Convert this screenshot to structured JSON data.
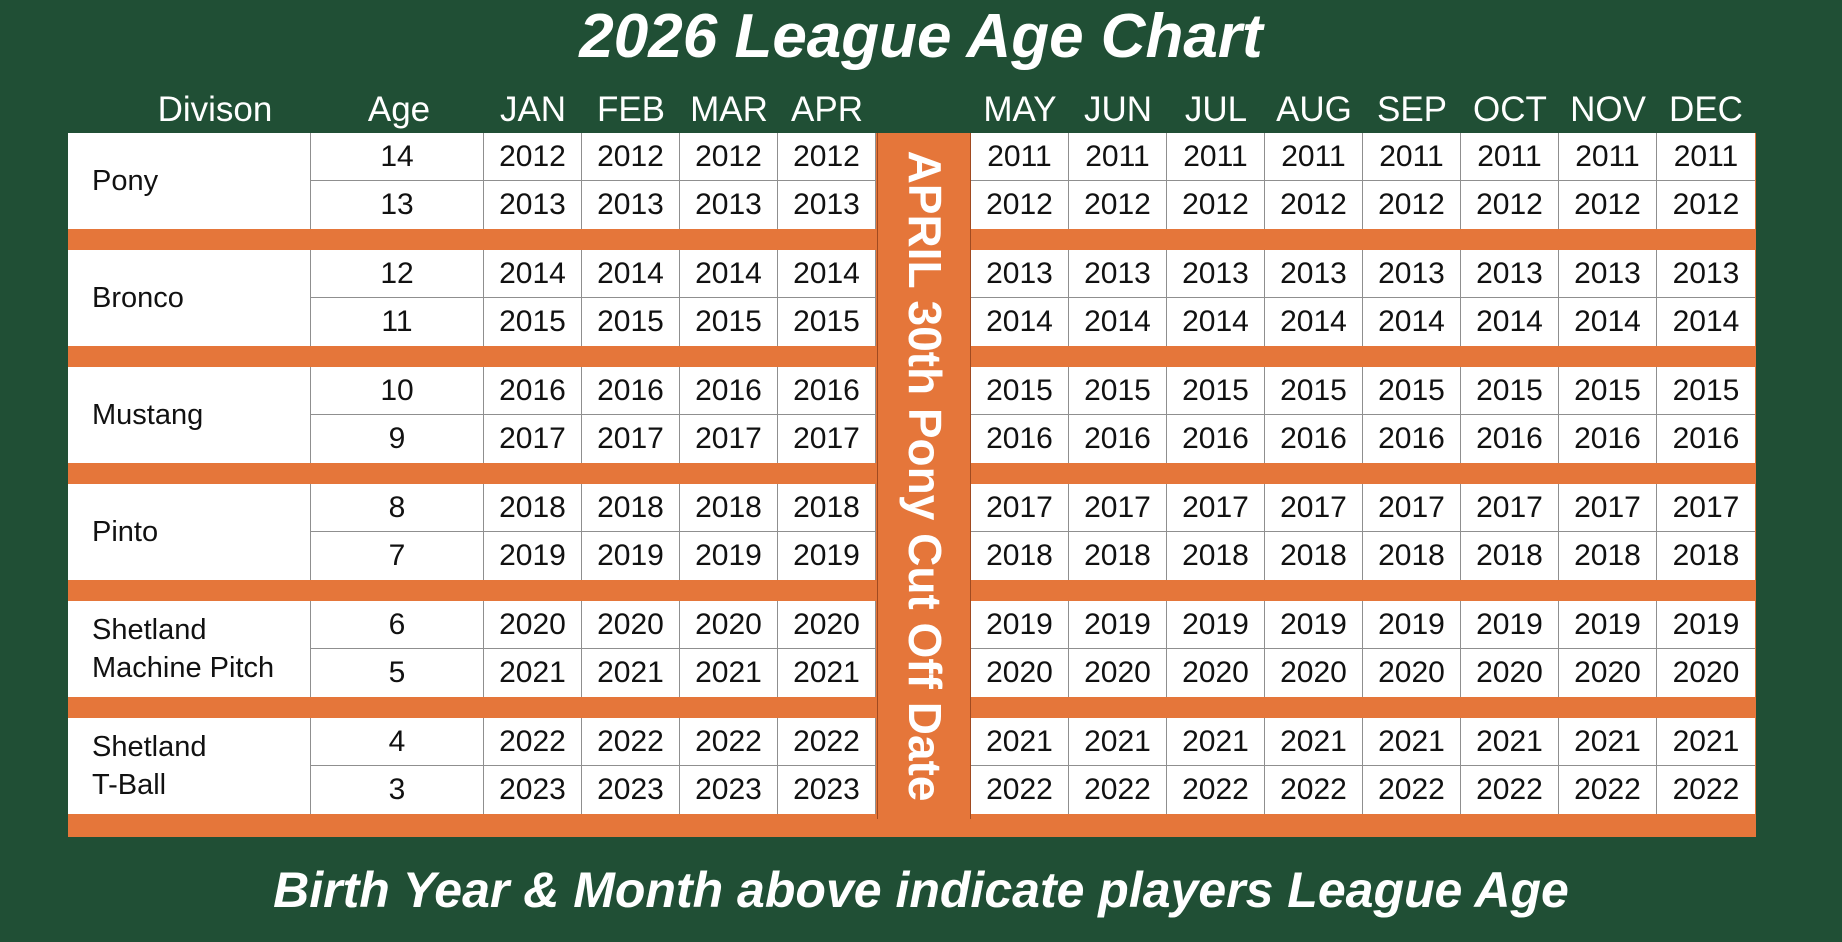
{
  "title": "2026 League Age Chart",
  "footer": "Birth Year & Month above indicate players League Age",
  "headers": {
    "division": "Divison",
    "age": "Age",
    "months": [
      "JAN",
      "FEB",
      "MAR",
      "APR",
      "MAY",
      "JUN",
      "JUL",
      "AUG",
      "SEP",
      "OCT",
      "NOV",
      "DEC"
    ]
  },
  "cutoff_label": "APRIL 30th Pony Cut Off Date",
  "colors": {
    "background": "#204f35",
    "accent": "#e5763a",
    "cell": "#ffffff"
  },
  "divisions": [
    {
      "name_lines": [
        "Pony"
      ],
      "rows": [
        {
          "age": "14",
          "years": [
            "2012",
            "2012",
            "2012",
            "2012",
            "2011",
            "2011",
            "2011",
            "2011",
            "2011",
            "2011",
            "2011",
            "2011"
          ]
        },
        {
          "age": "13",
          "years": [
            "2013",
            "2013",
            "2013",
            "2013",
            "2012",
            "2012",
            "2012",
            "2012",
            "2012",
            "2012",
            "2012",
            "2012"
          ]
        }
      ]
    },
    {
      "name_lines": [
        "Bronco"
      ],
      "rows": [
        {
          "age": "12",
          "years": [
            "2014",
            "2014",
            "2014",
            "2014",
            "2013",
            "2013",
            "2013",
            "2013",
            "2013",
            "2013",
            "2013",
            "2013"
          ]
        },
        {
          "age": "11",
          "years": [
            "2015",
            "2015",
            "2015",
            "2015",
            "2014",
            "2014",
            "2014",
            "2014",
            "2014",
            "2014",
            "2014",
            "2014"
          ]
        }
      ]
    },
    {
      "name_lines": [
        "Mustang"
      ],
      "rows": [
        {
          "age": "10",
          "years": [
            "2016",
            "2016",
            "2016",
            "2016",
            "2015",
            "2015",
            "2015",
            "2015",
            "2015",
            "2015",
            "2015",
            "2015"
          ]
        },
        {
          "age": "9",
          "years": [
            "2017",
            "2017",
            "2017",
            "2017",
            "2016",
            "2016",
            "2016",
            "2016",
            "2016",
            "2016",
            "2016",
            "2016"
          ]
        }
      ]
    },
    {
      "name_lines": [
        "Pinto"
      ],
      "rows": [
        {
          "age": "8",
          "years": [
            "2018",
            "2018",
            "2018",
            "2018",
            "2017",
            "2017",
            "2017",
            "2017",
            "2017",
            "2017",
            "2017",
            "2017"
          ]
        },
        {
          "age": "7",
          "years": [
            "2019",
            "2019",
            "2019",
            "2019",
            "2018",
            "2018",
            "2018",
            "2018",
            "2018",
            "2018",
            "2018",
            "2018"
          ]
        }
      ]
    },
    {
      "name_lines": [
        "Shetland",
        "Machine Pitch"
      ],
      "rows": [
        {
          "age": "6",
          "years": [
            "2020",
            "2020",
            "2020",
            "2020",
            "2019",
            "2019",
            "2019",
            "2019",
            "2019",
            "2019",
            "2019",
            "2019"
          ]
        },
        {
          "age": "5",
          "years": [
            "2021",
            "2021",
            "2021",
            "2021",
            "2020",
            "2020",
            "2020",
            "2020",
            "2020",
            "2020",
            "2020",
            "2020"
          ]
        }
      ]
    },
    {
      "name_lines": [
        "Shetland",
        "T-Ball"
      ],
      "rows": [
        {
          "age": "4",
          "years": [
            "2022",
            "2022",
            "2022",
            "2022",
            "2021",
            "2021",
            "2021",
            "2021",
            "2021",
            "2021",
            "2021",
            "2021"
          ]
        },
        {
          "age": "3",
          "years": [
            "2023",
            "2023",
            "2023",
            "2023",
            "2022",
            "2022",
            "2022",
            "2022",
            "2022",
            "2022",
            "2022",
            "2022"
          ]
        }
      ]
    }
  ]
}
